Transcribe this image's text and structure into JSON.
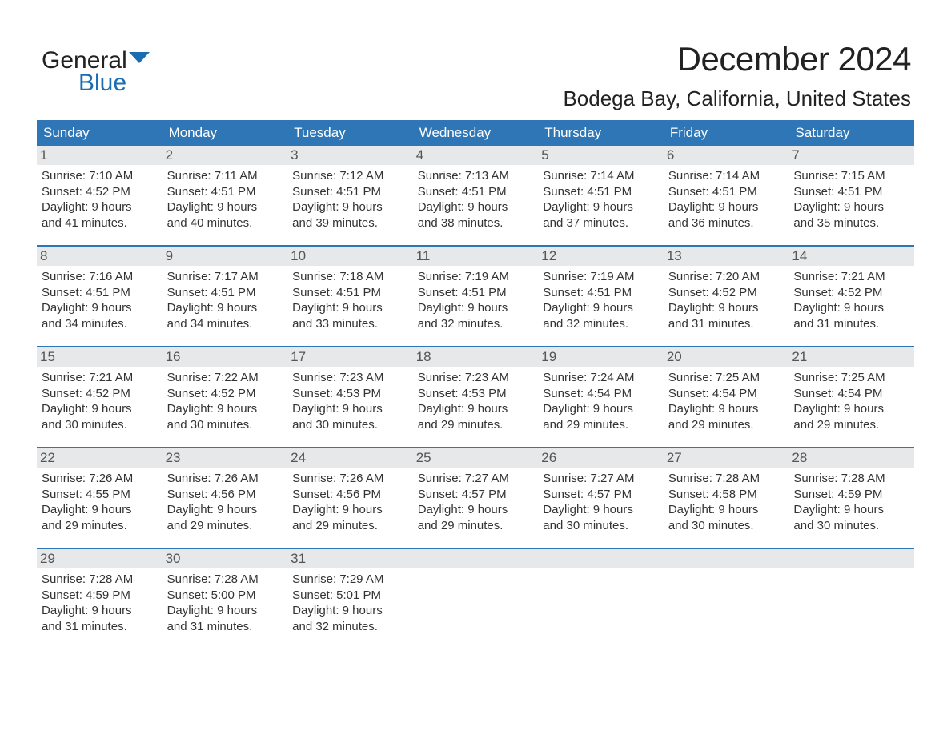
{
  "logo": {
    "line1": "General",
    "line2": "Blue"
  },
  "title": "December 2024",
  "subtitle": "Bodega Bay, California, United States",
  "colors": {
    "header_bg": "#2f76b6",
    "accent_blue": "#1b6db3",
    "day_header_bg": "#e7e8e9",
    "text": "#333333",
    "row_sep": "#2f76b6",
    "background": "#ffffff"
  },
  "dow": [
    "Sunday",
    "Monday",
    "Tuesday",
    "Wednesday",
    "Thursday",
    "Friday",
    "Saturday"
  ],
  "weeks": [
    [
      {
        "day": "1",
        "sunrise": "Sunrise: 7:10 AM",
        "sunset": "Sunset: 4:52 PM",
        "d1": "Daylight: 9 hours",
        "d2": "and 41 minutes."
      },
      {
        "day": "2",
        "sunrise": "Sunrise: 7:11 AM",
        "sunset": "Sunset: 4:51 PM",
        "d1": "Daylight: 9 hours",
        "d2": "and 40 minutes."
      },
      {
        "day": "3",
        "sunrise": "Sunrise: 7:12 AM",
        "sunset": "Sunset: 4:51 PM",
        "d1": "Daylight: 9 hours",
        "d2": "and 39 minutes."
      },
      {
        "day": "4",
        "sunrise": "Sunrise: 7:13 AM",
        "sunset": "Sunset: 4:51 PM",
        "d1": "Daylight: 9 hours",
        "d2": "and 38 minutes."
      },
      {
        "day": "5",
        "sunrise": "Sunrise: 7:14 AM",
        "sunset": "Sunset: 4:51 PM",
        "d1": "Daylight: 9 hours",
        "d2": "and 37 minutes."
      },
      {
        "day": "6",
        "sunrise": "Sunrise: 7:14 AM",
        "sunset": "Sunset: 4:51 PM",
        "d1": "Daylight: 9 hours",
        "d2": "and 36 minutes."
      },
      {
        "day": "7",
        "sunrise": "Sunrise: 7:15 AM",
        "sunset": "Sunset: 4:51 PM",
        "d1": "Daylight: 9 hours",
        "d2": "and 35 minutes."
      }
    ],
    [
      {
        "day": "8",
        "sunrise": "Sunrise: 7:16 AM",
        "sunset": "Sunset: 4:51 PM",
        "d1": "Daylight: 9 hours",
        "d2": "and 34 minutes."
      },
      {
        "day": "9",
        "sunrise": "Sunrise: 7:17 AM",
        "sunset": "Sunset: 4:51 PM",
        "d1": "Daylight: 9 hours",
        "d2": "and 34 minutes."
      },
      {
        "day": "10",
        "sunrise": "Sunrise: 7:18 AM",
        "sunset": "Sunset: 4:51 PM",
        "d1": "Daylight: 9 hours",
        "d2": "and 33 minutes."
      },
      {
        "day": "11",
        "sunrise": "Sunrise: 7:19 AM",
        "sunset": "Sunset: 4:51 PM",
        "d1": "Daylight: 9 hours",
        "d2": "and 32 minutes."
      },
      {
        "day": "12",
        "sunrise": "Sunrise: 7:19 AM",
        "sunset": "Sunset: 4:51 PM",
        "d1": "Daylight: 9 hours",
        "d2": "and 32 minutes."
      },
      {
        "day": "13",
        "sunrise": "Sunrise: 7:20 AM",
        "sunset": "Sunset: 4:52 PM",
        "d1": "Daylight: 9 hours",
        "d2": "and 31 minutes."
      },
      {
        "day": "14",
        "sunrise": "Sunrise: 7:21 AM",
        "sunset": "Sunset: 4:52 PM",
        "d1": "Daylight: 9 hours",
        "d2": "and 31 minutes."
      }
    ],
    [
      {
        "day": "15",
        "sunrise": "Sunrise: 7:21 AM",
        "sunset": "Sunset: 4:52 PM",
        "d1": "Daylight: 9 hours",
        "d2": "and 30 minutes."
      },
      {
        "day": "16",
        "sunrise": "Sunrise: 7:22 AM",
        "sunset": "Sunset: 4:52 PM",
        "d1": "Daylight: 9 hours",
        "d2": "and 30 minutes."
      },
      {
        "day": "17",
        "sunrise": "Sunrise: 7:23 AM",
        "sunset": "Sunset: 4:53 PM",
        "d1": "Daylight: 9 hours",
        "d2": "and 30 minutes."
      },
      {
        "day": "18",
        "sunrise": "Sunrise: 7:23 AM",
        "sunset": "Sunset: 4:53 PM",
        "d1": "Daylight: 9 hours",
        "d2": "and 29 minutes."
      },
      {
        "day": "19",
        "sunrise": "Sunrise: 7:24 AM",
        "sunset": "Sunset: 4:54 PM",
        "d1": "Daylight: 9 hours",
        "d2": "and 29 minutes."
      },
      {
        "day": "20",
        "sunrise": "Sunrise: 7:25 AM",
        "sunset": "Sunset: 4:54 PM",
        "d1": "Daylight: 9 hours",
        "d2": "and 29 minutes."
      },
      {
        "day": "21",
        "sunrise": "Sunrise: 7:25 AM",
        "sunset": "Sunset: 4:54 PM",
        "d1": "Daylight: 9 hours",
        "d2": "and 29 minutes."
      }
    ],
    [
      {
        "day": "22",
        "sunrise": "Sunrise: 7:26 AM",
        "sunset": "Sunset: 4:55 PM",
        "d1": "Daylight: 9 hours",
        "d2": "and 29 minutes."
      },
      {
        "day": "23",
        "sunrise": "Sunrise: 7:26 AM",
        "sunset": "Sunset: 4:56 PM",
        "d1": "Daylight: 9 hours",
        "d2": "and 29 minutes."
      },
      {
        "day": "24",
        "sunrise": "Sunrise: 7:26 AM",
        "sunset": "Sunset: 4:56 PM",
        "d1": "Daylight: 9 hours",
        "d2": "and 29 minutes."
      },
      {
        "day": "25",
        "sunrise": "Sunrise: 7:27 AM",
        "sunset": "Sunset: 4:57 PM",
        "d1": "Daylight: 9 hours",
        "d2": "and 29 minutes."
      },
      {
        "day": "26",
        "sunrise": "Sunrise: 7:27 AM",
        "sunset": "Sunset: 4:57 PM",
        "d1": "Daylight: 9 hours",
        "d2": "and 30 minutes."
      },
      {
        "day": "27",
        "sunrise": "Sunrise: 7:28 AM",
        "sunset": "Sunset: 4:58 PM",
        "d1": "Daylight: 9 hours",
        "d2": "and 30 minutes."
      },
      {
        "day": "28",
        "sunrise": "Sunrise: 7:28 AM",
        "sunset": "Sunset: 4:59 PM",
        "d1": "Daylight: 9 hours",
        "d2": "and 30 minutes."
      }
    ],
    [
      {
        "day": "29",
        "sunrise": "Sunrise: 7:28 AM",
        "sunset": "Sunset: 4:59 PM",
        "d1": "Daylight: 9 hours",
        "d2": "and 31 minutes."
      },
      {
        "day": "30",
        "sunrise": "Sunrise: 7:28 AM",
        "sunset": "Sunset: 5:00 PM",
        "d1": "Daylight: 9 hours",
        "d2": "and 31 minutes."
      },
      {
        "day": "31",
        "sunrise": "Sunrise: 7:29 AM",
        "sunset": "Sunset: 5:01 PM",
        "d1": "Daylight: 9 hours",
        "d2": "and 32 minutes."
      },
      null,
      null,
      null,
      null
    ]
  ]
}
